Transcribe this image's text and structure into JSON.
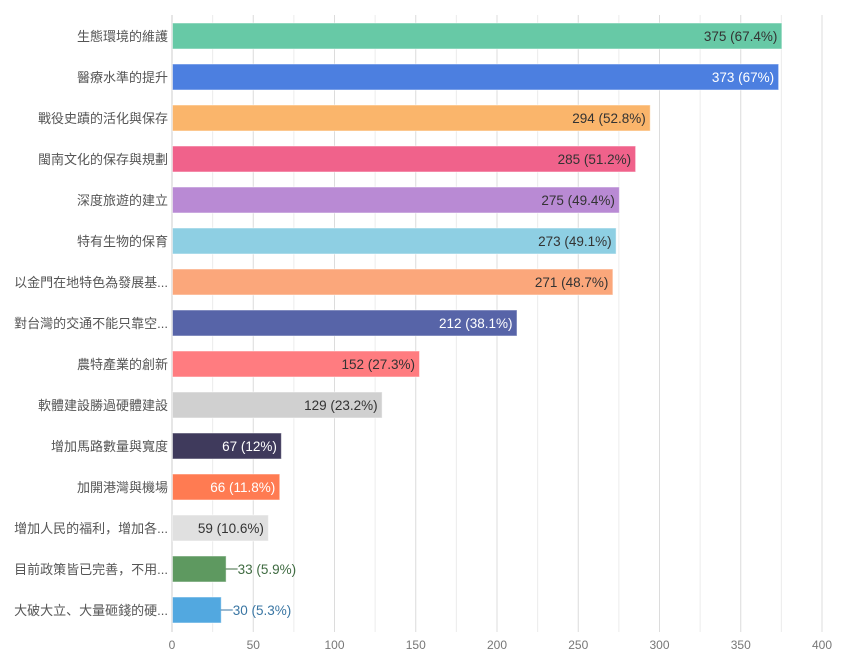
{
  "chart_data": {
    "type": "bar",
    "orientation": "horizontal",
    "title": "",
    "xlabel": "",
    "ylabel": "",
    "xlim": [
      0,
      400
    ],
    "xticks": [
      0,
      50,
      100,
      150,
      200,
      250,
      300,
      350,
      400
    ],
    "grid": true,
    "categories": [
      "生態環境的維護",
      "醫療水準的提升",
      "戰役史蹟的活化與保存",
      "閩南文化的保存與規劃",
      "深度旅遊的建立",
      "特有生物的保育",
      "以金門在地特色為發展基...",
      "對台灣的交通不能只靠空...",
      "農特產業的創新",
      "軟體建設勝過硬體建設",
      "增加馬路數量與寬度",
      "加開港灣與機場",
      "增加人民的福利，增加各...",
      "目前政策皆已完善，不用...",
      "大破大立、大量砸錢的硬..."
    ],
    "values": [
      375,
      373,
      294,
      285,
      275,
      273,
      271,
      212,
      152,
      129,
      67,
      66,
      59,
      33,
      30
    ],
    "data_labels": [
      "375 (67.4%)",
      "373 (67%)",
      "294 (52.8%)",
      "285 (51.2%)",
      "275 (49.4%)",
      "273 (49.1%)",
      "271 (48.7%)",
      "212 (38.1%)",
      "152 (27.3%)",
      "129 (23.2%)",
      "67 (12%)",
      "66 (11.8%)",
      "59 (10.6%)",
      "33 (5.9%)",
      "30 (5.3%)"
    ],
    "colors": [
      "#67c9a6",
      "#4c7fe0",
      "#fab56b",
      "#f0628b",
      "#b98ad4",
      "#8ecfe3",
      "#fba77b",
      "#5764a8",
      "#ff7c80",
      "#d0d0d0",
      "#3f3a5c",
      "#ff7b52",
      "#e0e0e0",
      "#5e9960",
      "#52a8e0"
    ],
    "label_colors": [
      "#333333",
      "#ffffff",
      "#333333",
      "#333333",
      "#333333",
      "#333333",
      "#333333",
      "#ffffff",
      "#333333",
      "#333333",
      "#ffffff",
      "#ffffff",
      "#333333",
      "#3f6b41",
      "#3a76a3"
    ],
    "label_outside": [
      false,
      false,
      false,
      false,
      false,
      false,
      false,
      false,
      false,
      false,
      false,
      false,
      false,
      true,
      true
    ]
  }
}
